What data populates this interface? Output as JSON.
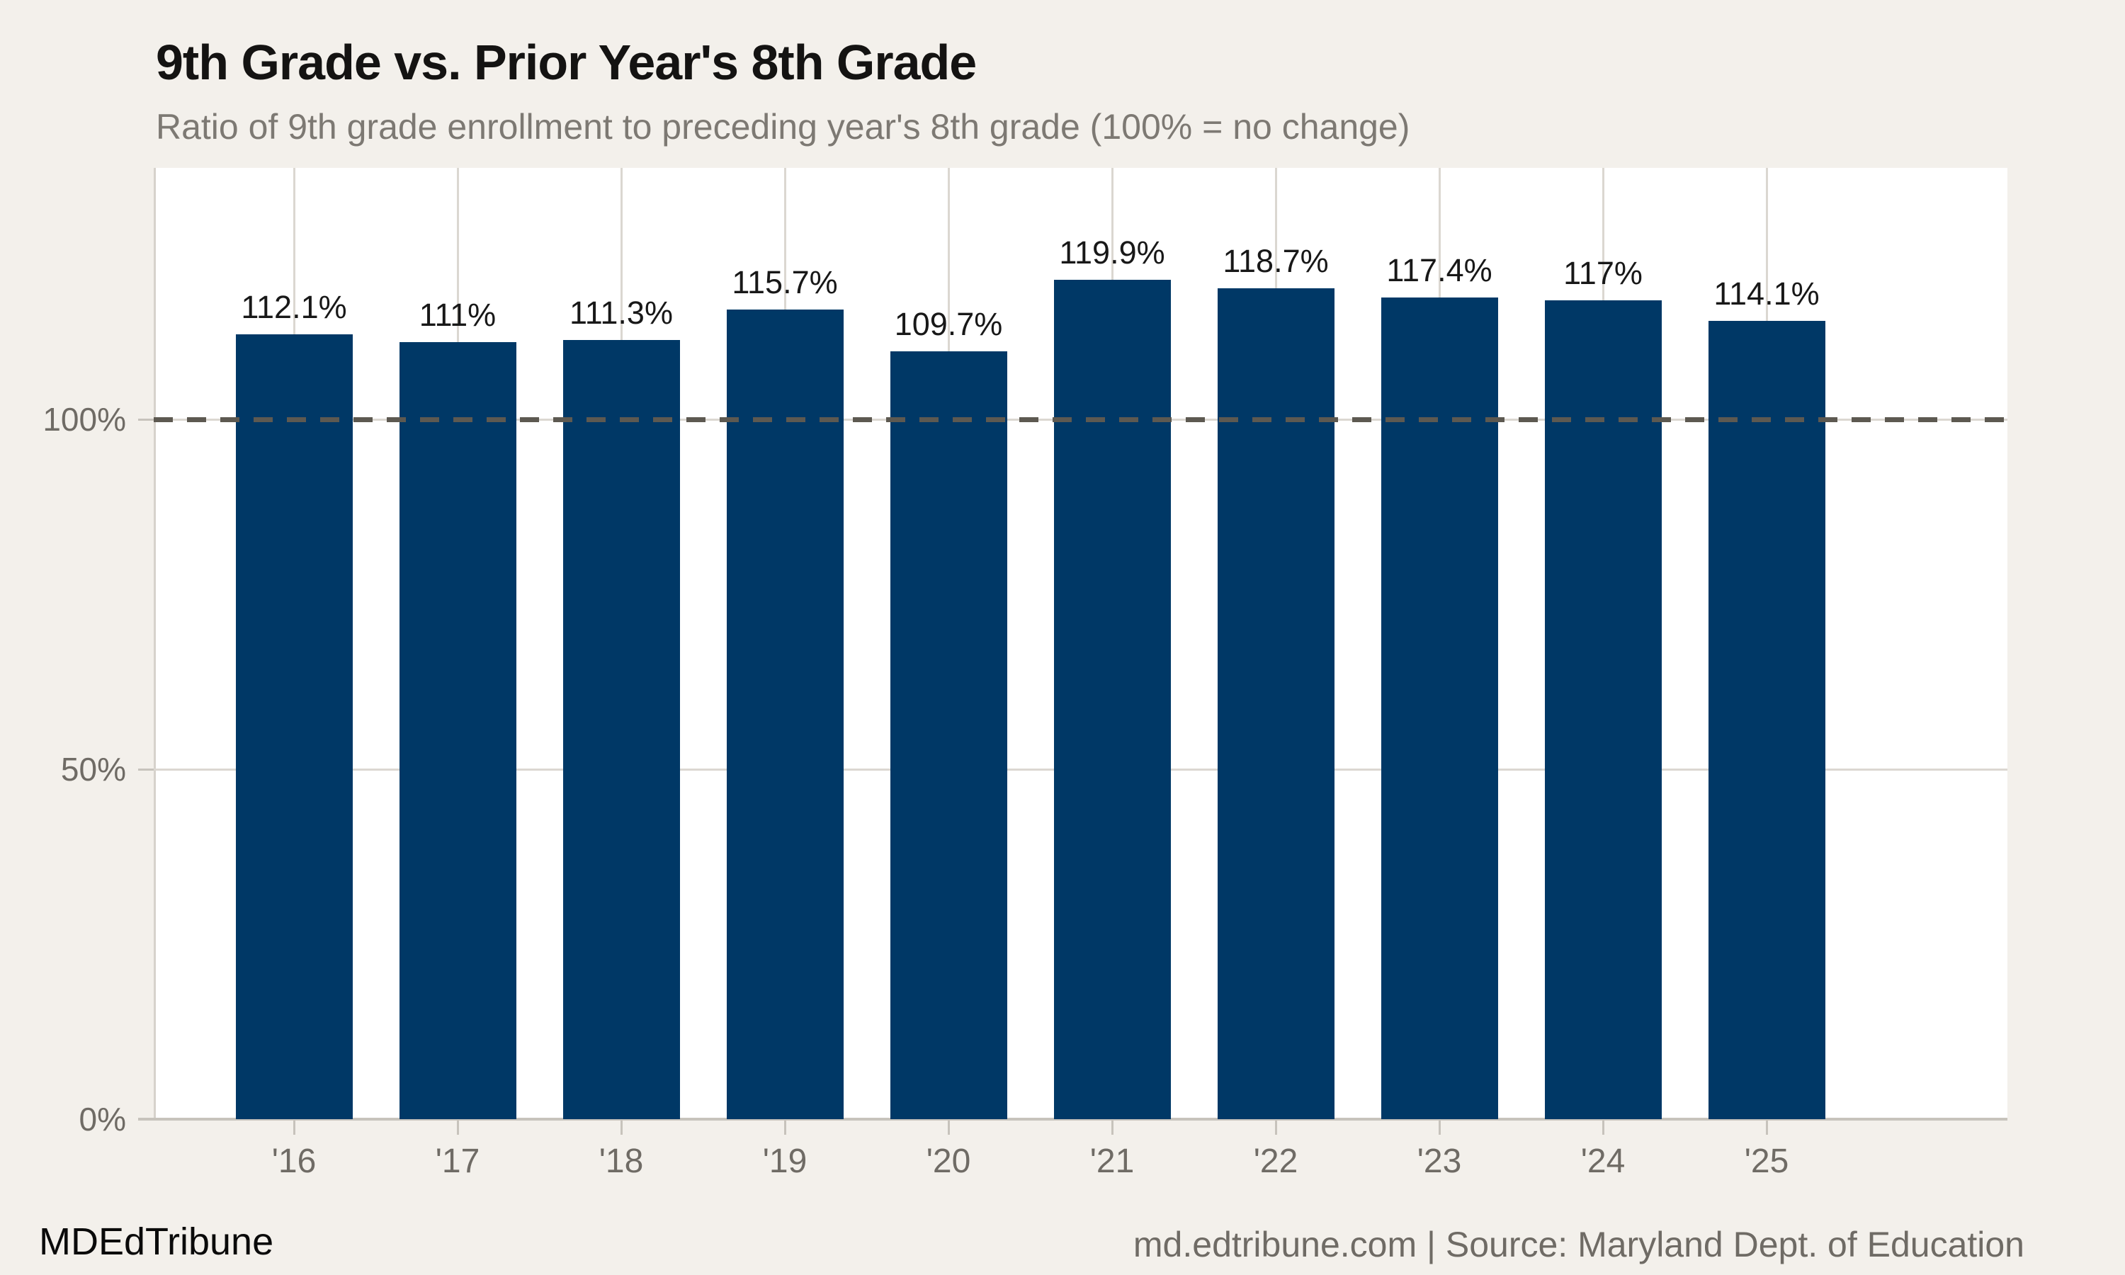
{
  "header": {
    "title": "9th Grade vs. Prior Year's 8th Grade",
    "subtitle": "Ratio of 9th grade enrollment to preceding year's 8th grade (100% = no change)"
  },
  "footer": {
    "brand": "MDEdTribune",
    "source": "md.edtribune.com | Source: Maryland Dept. of Education"
  },
  "chart_data": {
    "type": "bar",
    "title": "9th Grade vs. Prior Year's 8th Grade",
    "subtitle": "Ratio of 9th grade enrollment to preceding year's 8th grade (100% = no change)",
    "categories": [
      "'16",
      "'17",
      "'18",
      "'19",
      "'20",
      "'21",
      "'22",
      "'23",
      "'24",
      "'25"
    ],
    "values": [
      112.1,
      111,
      111.3,
      115.7,
      109.7,
      119.9,
      118.7,
      117.4,
      117,
      114.1
    ],
    "value_labels": [
      "112.1%",
      "111%",
      "111.3%",
      "115.7%",
      "109.7%",
      "119.9%",
      "118.7%",
      "117.4%",
      "117%",
      "114.1%"
    ],
    "xlabel": "",
    "ylabel": "",
    "ylim": [
      0,
      136
    ],
    "y_ticks": [
      {
        "value": 0,
        "label": "0%"
      },
      {
        "value": 50,
        "label": "50%"
      },
      {
        "value": 100,
        "label": "100%"
      }
    ],
    "reference_line": {
      "value": 100,
      "style": "dashed",
      "meaning": "100% = no change"
    },
    "grid": {
      "vertical": true,
      "horizontal": true
    },
    "legend": "none",
    "colors": {
      "bar": "#003866",
      "page_background": "#f3f0eb",
      "plot_background": "#ffffff",
      "gridline": "#dbd7d1",
      "axis_line": "#c7c3bc",
      "reference_dash": "#5d5951",
      "axis_text": "#6f6b65",
      "title_text": "#141312",
      "subtitle_text": "#7d7973",
      "value_label_text": "#181818"
    }
  }
}
